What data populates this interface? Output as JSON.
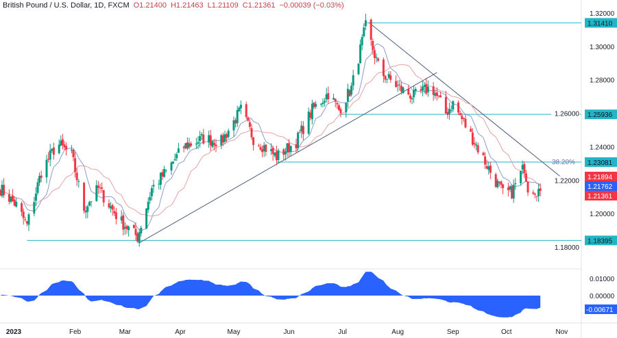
{
  "header": {
    "symbol": "British Pound / U.S. Dollar, 1D, FXCM",
    "open": "O1.21400",
    "high": "H1.21463",
    "low": "L1.21109",
    "close": "C1.21361",
    "change": "−0.00039 (−0.03%)"
  },
  "chart_data": {
    "type": "candlestick",
    "x_ticks": [
      "2023",
      "Feb",
      "Mar",
      "Apr",
      "May",
      "Jun",
      "Jul",
      "Aug",
      "Sep",
      "Oct",
      "Nov"
    ],
    "y_ticks": [
      "1.32000",
      "1.30000",
      "1.28000",
      "1.26000",
      "1.24000",
      "1.22000",
      "1.20000",
      "1.18000"
    ],
    "ylim": [
      1.178,
      1.322
    ],
    "key_closes": [
      [
        "2022-12-21",
        1.215
      ],
      [
        "2022-12-30",
        1.205
      ],
      [
        "2023-01-05",
        1.193
      ],
      [
        "2023-01-13",
        1.225
      ],
      [
        "2023-01-22",
        1.242
      ],
      [
        "2023-01-30",
        1.235
      ],
      [
        "2023-02-06",
        1.203
      ],
      [
        "2023-02-14",
        1.215
      ],
      [
        "2023-02-26",
        1.196
      ],
      [
        "2023-03-08",
        1.186
      ],
      [
        "2023-03-16",
        1.215
      ],
      [
        "2023-03-24",
        1.225
      ],
      [
        "2023-04-03",
        1.24
      ],
      [
        "2023-04-14",
        1.245
      ],
      [
        "2023-04-24",
        1.243
      ],
      [
        "2023-05-05",
        1.262
      ],
      [
        "2023-05-12",
        1.245
      ],
      [
        "2023-05-25",
        1.234
      ],
      [
        "2023-06-05",
        1.243
      ],
      [
        "2023-06-14",
        1.262
      ],
      [
        "2023-06-23",
        1.272
      ],
      [
        "2023-06-29",
        1.262
      ],
      [
        "2023-07-06",
        1.275
      ],
      [
        "2023-07-14",
        1.312
      ],
      [
        "2023-07-22",
        1.285
      ],
      [
        "2023-08-02",
        1.275
      ],
      [
        "2023-08-10",
        1.27
      ],
      [
        "2023-08-20",
        1.276
      ],
      [
        "2023-08-28",
        1.26
      ],
      [
        "2023-09-01",
        1.266
      ],
      [
        "2023-09-12",
        1.245
      ],
      [
        "2023-09-22",
        1.225
      ],
      [
        "2023-09-29",
        1.212
      ],
      [
        "2023-10-04",
        1.213
      ],
      [
        "2023-10-11",
        1.228
      ],
      [
        "2023-10-13",
        1.216
      ],
      [
        "2023-10-20",
        1.2136
      ]
    ],
    "moving_averages": [
      {
        "color": "#8c9bc9"
      },
      {
        "color": "#e8a0a4"
      }
    ],
    "levels": [
      {
        "value": 1.3141,
        "label": "1.31410",
        "from": "2023-07-14"
      },
      {
        "value": 1.25936,
        "label": "1.25936",
        "from": "2023-06-29"
      },
      {
        "value": 1.23081,
        "label": "1.23081",
        "from": "2023-05-25",
        "fib": "38.20%"
      },
      {
        "value": 1.18395,
        "label": "1.18395",
        "from": "2023-01-05"
      }
    ],
    "trendlines": [
      {
        "from": [
          "2023-03-09",
          1.1825
        ],
        "to": [
          "2023-08-23",
          1.2844
        ]
      },
      {
        "from": [
          "2023-07-16",
          1.3141
        ],
        "to": [
          "2023-11-01",
          1.2215
        ]
      }
    ],
    "price_badges": [
      {
        "label": "1.21894",
        "color": "#f23645"
      },
      {
        "label": "1.21762",
        "color": "#2962ff"
      },
      {
        "label": "1.21361",
        "color": "#f23645"
      }
    ],
    "oscillator": {
      "y_ticks": [
        "0.01000",
        "0.00000"
      ],
      "last_label": "-0.00671",
      "color": "#2962ff"
    },
    "colors": {
      "up": "#089981",
      "down": "#f23645",
      "level": "#22b5c6",
      "trend": "#4a5a7a"
    }
  }
}
